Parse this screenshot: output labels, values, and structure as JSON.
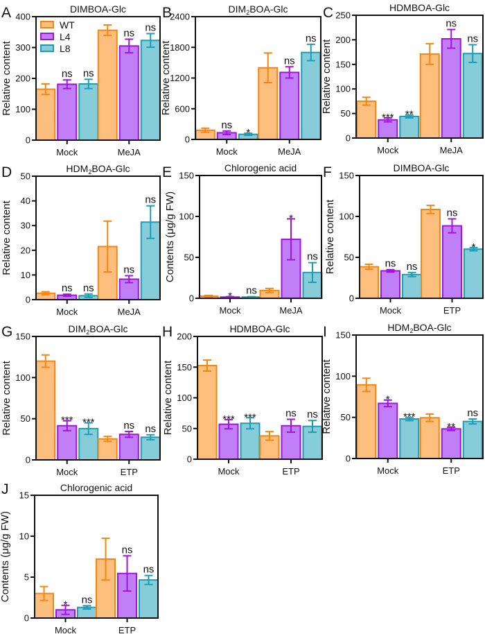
{
  "figure": {
    "series_names": [
      "WT",
      "L4",
      "L8"
    ],
    "series_colors": {
      "WT": {
        "fill": "#FDBF7E",
        "stroke": "#F7850F"
      },
      "L4": {
        "fill": "#C07FF7",
        "stroke": "#A313E0"
      },
      "L8": {
        "fill": "#87CDD9",
        "stroke": "#1A9DB5"
      }
    }
  },
  "chart_data": [
    {
      "panel": "A",
      "type": "bar",
      "title": "DIMBOA-Glc",
      "ylabel": "Relative content",
      "ylim": [
        0,
        400
      ],
      "yticks": [
        0,
        100,
        200,
        300,
        400
      ],
      "categories": [
        "Mock",
        "MeJA"
      ],
      "legend": {
        "entries": [
          "WT",
          "L4",
          "L8"
        ],
        "placement": "top-left"
      },
      "series": [
        {
          "name": "WT",
          "values": [
            165,
            356
          ],
          "errors": [
            17,
            17
          ],
          "sig": [
            "",
            ""
          ]
        },
        {
          "name": "L4",
          "values": [
            181,
            305
          ],
          "errors": [
            14,
            22
          ],
          "sig": [
            "ns",
            "ns"
          ]
        },
        {
          "name": "L8",
          "values": [
            182,
            323
          ],
          "errors": [
            15,
            22
          ],
          "sig": [
            "ns",
            "ns"
          ]
        }
      ]
    },
    {
      "panel": "B",
      "type": "bar",
      "title": "DIM2BOA-Glc",
      "title_parts": [
        "DIM",
        "2",
        "BOA-Glc"
      ],
      "ylabel": "Relative content",
      "ylim": [
        0,
        2400
      ],
      "yticks": [
        0,
        600,
        1200,
        1800,
        2400
      ],
      "categories": [
        "Mock",
        "MeJA"
      ],
      "series": [
        {
          "name": "WT",
          "values": [
            180,
            1400
          ],
          "errors": [
            40,
            290
          ],
          "sig": [
            "",
            ""
          ]
        },
        {
          "name": "L4",
          "values": [
            130,
            1310
          ],
          "errors": [
            35,
            110
          ],
          "sig": [
            "ns",
            "ns"
          ]
        },
        {
          "name": "L8",
          "values": [
            100,
            1700
          ],
          "errors": [
            20,
            160
          ],
          "sig": [
            "*",
            "ns"
          ]
        }
      ]
    },
    {
      "panel": "C",
      "type": "bar",
      "title": "HDMBOA-Glc",
      "ylabel": "Relative content",
      "ylim": [
        0,
        250
      ],
      "yticks": [
        0,
        50,
        100,
        150,
        200,
        250
      ],
      "categories": [
        "Mock",
        "MeJA"
      ],
      "series": [
        {
          "name": "WT",
          "values": [
            75,
            171
          ],
          "errors": [
            8,
            21
          ],
          "sig": [
            "",
            ""
          ]
        },
        {
          "name": "L4",
          "values": [
            37,
            202
          ],
          "errors": [
            4,
            19
          ],
          "sig": [
            "***",
            "ns"
          ]
        },
        {
          "name": "L8",
          "values": [
            44,
            172
          ],
          "errors": [
            3,
            18
          ],
          "sig": [
            "**",
            "ns"
          ]
        }
      ]
    },
    {
      "panel": "D",
      "type": "bar",
      "title": "HDM2BOA-Glc",
      "title_parts": [
        "HDM",
        "2",
        "BOA-Glc"
      ],
      "ylabel": "Relative content",
      "ylim": [
        0,
        50
      ],
      "yticks": [
        0,
        10,
        20,
        30,
        40,
        50
      ],
      "categories": [
        "Mock",
        "MeJA"
      ],
      "series": [
        {
          "name": "WT",
          "values": [
            2.6,
            21.5
          ],
          "errors": [
            0.6,
            10.3
          ],
          "sig": [
            "",
            ""
          ]
        },
        {
          "name": "L4",
          "values": [
            1.8,
            8.3
          ],
          "errors": [
            0.4,
            1.4
          ],
          "sig": [
            "ns",
            "ns"
          ]
        },
        {
          "name": "L8",
          "values": [
            1.6,
            31.4
          ],
          "errors": [
            0.7,
            6.6
          ],
          "sig": [
            "ns",
            "ns"
          ]
        }
      ]
    },
    {
      "panel": "E",
      "type": "bar",
      "title": "Chlorogenic acid",
      "ylabel": "Contents (μg/g FW)",
      "ylim": [
        0,
        150
      ],
      "yticks": [
        0,
        50,
        100,
        150
      ],
      "categories": [
        "Mock",
        "MeJA"
      ],
      "series": [
        {
          "name": "WT",
          "values": [
            2.5,
            9.5
          ],
          "errors": [
            1.0,
            2.5
          ],
          "sig": [
            "",
            ""
          ]
        },
        {
          "name": "L4",
          "values": [
            1.5,
            72
          ],
          "errors": [
            0.5,
            25
          ],
          "sig": [
            "*",
            "*"
          ]
        },
        {
          "name": "L8",
          "values": [
            1.5,
            31.5
          ],
          "errors": [
            0.5,
            12
          ],
          "sig": [
            "ns",
            "ns"
          ]
        }
      ]
    },
    {
      "panel": "F",
      "type": "bar",
      "title": "DIMBOA-Glc",
      "ylabel": "Relative content",
      "ylim": [
        0,
        150
      ],
      "yticks": [
        0,
        50,
        100,
        150
      ],
      "categories": [
        "Mock",
        "ETP"
      ],
      "series": [
        {
          "name": "WT",
          "values": [
            38.5,
            108.5
          ],
          "errors": [
            3,
            5
          ],
          "sig": [
            "",
            ""
          ]
        },
        {
          "name": "L4",
          "values": [
            33.5,
            88.5
          ],
          "errors": [
            1.5,
            8.5
          ],
          "sig": [
            "ns",
            "ns"
          ]
        },
        {
          "name": "L8",
          "values": [
            29,
            60
          ],
          "errors": [
            2.5,
            2
          ],
          "sig": [
            "ns",
            "*"
          ]
        }
      ]
    },
    {
      "panel": "G",
      "type": "bar",
      "title": "DIM2BOA-Glc",
      "title_parts": [
        "DIM",
        "2",
        "BOA-Glc"
      ],
      "ylabel": "Relative content",
      "ylim": [
        0,
        150
      ],
      "yticks": [
        0,
        50,
        100,
        150
      ],
      "categories": [
        "Mock",
        "ETP"
      ],
      "series": [
        {
          "name": "WT",
          "values": [
            120,
            25.5
          ],
          "errors": [
            7.5,
            3
          ],
          "sig": [
            "",
            ""
          ]
        },
        {
          "name": "L4",
          "values": [
            41.5,
            31
          ],
          "errors": [
            6,
            3.5
          ],
          "sig": [
            "***",
            "ns"
          ]
        },
        {
          "name": "L8",
          "values": [
            38,
            27.5
          ],
          "errors": [
            7,
            3
          ],
          "sig": [
            "***",
            "ns"
          ]
        }
      ]
    },
    {
      "panel": "H",
      "type": "bar",
      "title": "HDMBOA-Glc",
      "ylabel": "Relative content",
      "ylim": [
        0,
        200
      ],
      "yticks": [
        0,
        50,
        100,
        150,
        200
      ],
      "categories": [
        "Mock",
        "ETP"
      ],
      "series": [
        {
          "name": "WT",
          "values": [
            152.5,
            38
          ],
          "errors": [
            9,
            7
          ],
          "sig": [
            "",
            ""
          ]
        },
        {
          "name": "L4",
          "values": [
            57,
            54.5
          ],
          "errors": [
            7.5,
            10.5
          ],
          "sig": [
            "***",
            "ns"
          ]
        },
        {
          "name": "L8",
          "values": [
            58.5,
            53.5
          ],
          "errors": [
            9,
            9.5
          ],
          "sig": [
            "***",
            "ns"
          ]
        }
      ]
    },
    {
      "panel": "I",
      "type": "bar",
      "title": "HDM2BOA-Glc",
      "title_parts": [
        "HDM",
        "2",
        "BOA-Glc"
      ],
      "ylabel": "Relative content",
      "ylim": [
        0,
        150
      ],
      "yticks": [
        0,
        50,
        100,
        150
      ],
      "categories": [
        "Mock",
        "ETP"
      ],
      "series": [
        {
          "name": "WT",
          "values": [
            89.5,
            49.5
          ],
          "errors": [
            8,
            4.5
          ],
          "sig": [
            "",
            ""
          ]
        },
        {
          "name": "L4",
          "values": [
            67,
            36
          ],
          "errors": [
            4,
            2
          ],
          "sig": [
            "*",
            "**"
          ]
        },
        {
          "name": "L8",
          "values": [
            48,
            45
          ],
          "errors": [
            2,
            3
          ],
          "sig": [
            "***",
            "ns"
          ]
        }
      ]
    },
    {
      "panel": "J",
      "type": "bar",
      "title": "Chlorogenic acid",
      "ylabel": "Contents (μg/g FW)",
      "ylim": [
        0,
        15
      ],
      "yticks": [
        0,
        5,
        10,
        15
      ],
      "categories": [
        "Mock",
        "ETP"
      ],
      "series": [
        {
          "name": "WT",
          "values": [
            3.0,
            7.2
          ],
          "errors": [
            0.85,
            2.55
          ],
          "sig": [
            "",
            ""
          ]
        },
        {
          "name": "L4",
          "values": [
            1.0,
            5.45
          ],
          "errors": [
            0.55,
            2.15
          ],
          "sig": [
            "*",
            "ns"
          ]
        },
        {
          "name": "L8",
          "values": [
            1.3,
            4.65
          ],
          "errors": [
            0.2,
            0.55
          ],
          "sig": [
            "ns",
            "ns"
          ]
        }
      ]
    }
  ]
}
